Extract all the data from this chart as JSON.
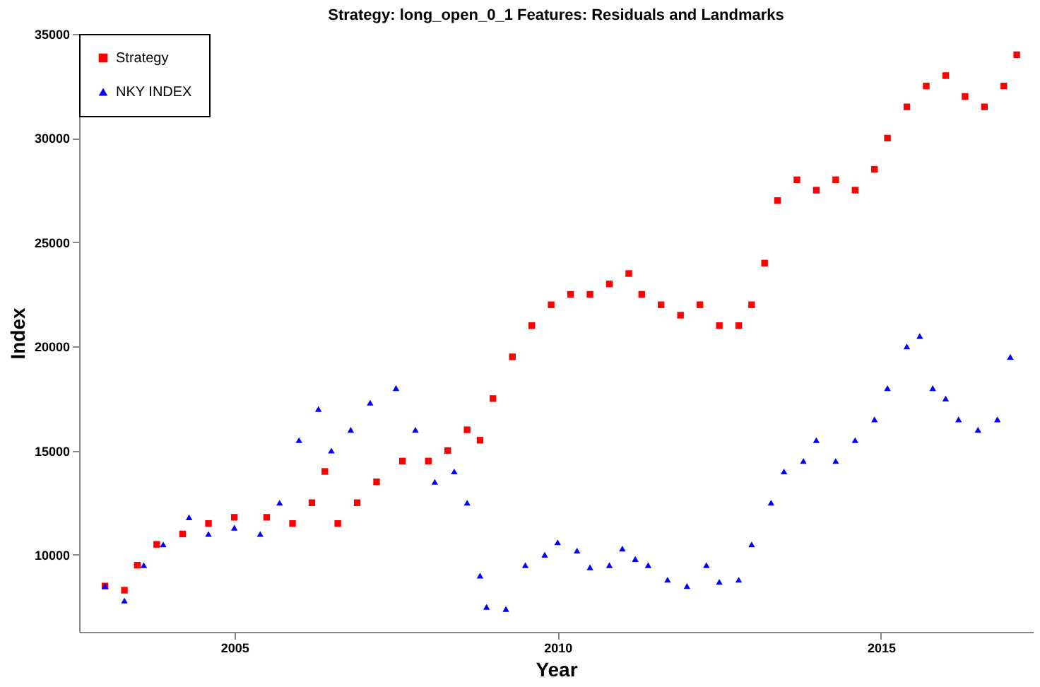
{
  "chart_data": {
    "type": "scatter",
    "title": "Strategy: long_open_0_1   Features: Residuals and Landmarks",
    "xlabel": "Year",
    "ylabel": "Index",
    "xlim": [
      2002.6,
      2017.35
    ],
    "xticks": [
      2005,
      2010,
      2015
    ],
    "ylim": [
      6300,
      35000
    ],
    "yticks": [
      10000,
      15000,
      20000,
      25000,
      30000,
      35000
    ],
    "grid": false,
    "legend": "top left",
    "series": [
      {
        "name": "Strategy",
        "color": "#ff0000",
        "marker": "square",
        "x": [
          2003.0,
          2003.3,
          2003.5,
          2003.8,
          2004.2,
          2004.6,
          2005.0,
          2005.5,
          2005.9,
          2006.2,
          2006.4,
          2006.6,
          2006.9,
          2007.2,
          2007.6,
          2008.0,
          2008.3,
          2008.6,
          2008.8,
          2009.0,
          2009.3,
          2009.6,
          2009.9,
          2010.2,
          2010.5,
          2010.8,
          2011.1,
          2011.3,
          2011.6,
          2011.9,
          2012.2,
          2012.5,
          2012.8,
          2013.0,
          2013.2,
          2013.4,
          2013.7,
          2014.0,
          2014.3,
          2014.6,
          2014.9,
          2015.1,
          2015.4,
          2015.7,
          2016.0,
          2016.3,
          2016.6,
          2016.9,
          2017.1
        ],
        "values": [
          8500,
          8300,
          9500,
          10500,
          11000,
          11500,
          11800,
          11800,
          11500,
          12500,
          14000,
          11500,
          12500,
          13500,
          14500,
          14500,
          15000,
          16000,
          15500,
          17500,
          19500,
          21000,
          22000,
          22500,
          22500,
          23000,
          23500,
          22500,
          22000,
          21500,
          22000,
          21000,
          21000,
          22000,
          24000,
          27000,
          28000,
          27500,
          28000,
          27500,
          28500,
          30000,
          31500,
          32500,
          33000,
          32000,
          31500,
          32500,
          34000
        ]
      },
      {
        "name": "NKY INDEX",
        "color": "#0000ff",
        "marker": "triangle",
        "x": [
          2003.0,
          2003.3,
          2003.6,
          2003.9,
          2004.3,
          2004.6,
          2005.0,
          2005.4,
          2005.7,
          2006.0,
          2006.3,
          2006.5,
          2006.8,
          2007.1,
          2007.5,
          2007.8,
          2008.1,
          2008.4,
          2008.6,
          2008.8,
          2008.9,
          2009.2,
          2009.5,
          2009.8,
          2010.0,
          2010.3,
          2010.5,
          2010.8,
          2011.0,
          2011.2,
          2011.4,
          2011.7,
          2012.0,
          2012.3,
          2012.5,
          2012.8,
          2013.0,
          2013.3,
          2013.5,
          2013.8,
          2014.0,
          2014.3,
          2014.6,
          2014.9,
          2015.1,
          2015.4,
          2015.6,
          2015.8,
          2016.0,
          2016.2,
          2016.5,
          2016.8,
          2017.0
        ],
        "values": [
          8500,
          7800,
          9500,
          10500,
          11800,
          11000,
          11300,
          11000,
          12500,
          15500,
          17000,
          15000,
          16000,
          17300,
          18000,
          16000,
          13500,
          14000,
          12500,
          9000,
          7500,
          7400,
          9500,
          10000,
          10600,
          10200,
          9400,
          9500,
          10300,
          9800,
          9500,
          8800,
          8500,
          9500,
          8700,
          8800,
          10500,
          12500,
          14000,
          14500,
          15500,
          14500,
          15500,
          16500,
          18000,
          20000,
          20500,
          18000,
          17500,
          16500,
          16000,
          16500,
          19500
        ]
      }
    ]
  }
}
